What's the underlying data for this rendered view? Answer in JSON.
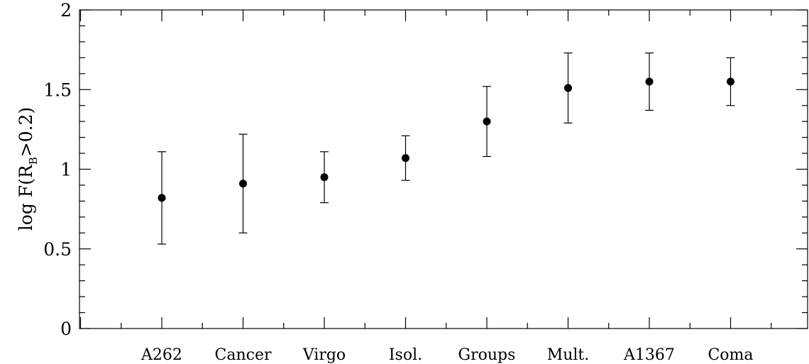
{
  "chart_data": {
    "type": "scatter",
    "categories": [
      "A262",
      "Cancer",
      "Virgo",
      "Isol.",
      "Groups",
      "Mult.",
      "A1367",
      "Coma"
    ],
    "values": [
      0.82,
      0.91,
      0.95,
      1.07,
      1.3,
      1.51,
      1.55,
      1.55
    ],
    "error_low": [
      0.53,
      0.6,
      0.79,
      0.93,
      1.08,
      1.29,
      1.37,
      1.4
    ],
    "error_high": [
      1.11,
      1.22,
      1.11,
      1.21,
      1.52,
      1.73,
      1.73,
      1.7
    ],
    "ylabel": {
      "prefix": "log F(R",
      "subscript": "B",
      "suffix": ">0.2)"
    },
    "ylim": [
      0,
      2
    ],
    "y_ticks": [
      "0",
      "0.5",
      "1",
      "1.5",
      "2"
    ],
    "y_minor_step": 0.1,
    "grid": false,
    "legend": "none",
    "marker_color": "#000000"
  }
}
